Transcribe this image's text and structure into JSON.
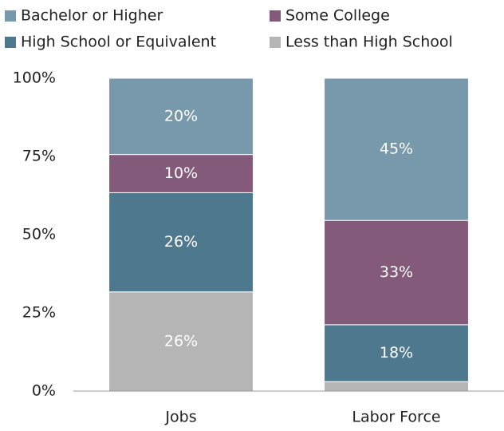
{
  "chart_data": {
    "type": "bar",
    "stacking": "percent",
    "categories": [
      "Jobs",
      "Labor Force"
    ],
    "series": [
      {
        "name": "Bachelor or Higher",
        "color": "#7899ab",
        "values": [
          20,
          45
        ],
        "value_labels": [
          "20%",
          "45%"
        ]
      },
      {
        "name": "Some College",
        "color": "#845a7a",
        "values": [
          10,
          33
        ],
        "value_labels": [
          "10%",
          "33%"
        ]
      },
      {
        "name": "High School or Equivalent",
        "color": "#4e788d",
        "values": [
          26,
          18
        ],
        "value_labels": [
          "26%",
          "18%"
        ]
      },
      {
        "name": "Less than High School",
        "color": "#b5b5b5",
        "values": [
          26,
          3
        ],
        "value_labels": [
          "26%",
          null
        ]
      }
    ],
    "ylim": [
      0,
      100
    ],
    "yticks": [
      {
        "value": 0,
        "label": "0%"
      },
      {
        "value": 25,
        "label": "25%"
      },
      {
        "value": 50,
        "label": "50%"
      },
      {
        "value": 75,
        "label": "75%"
      },
      {
        "value": 100,
        "label": "100%"
      }
    ],
    "grid": false
  }
}
